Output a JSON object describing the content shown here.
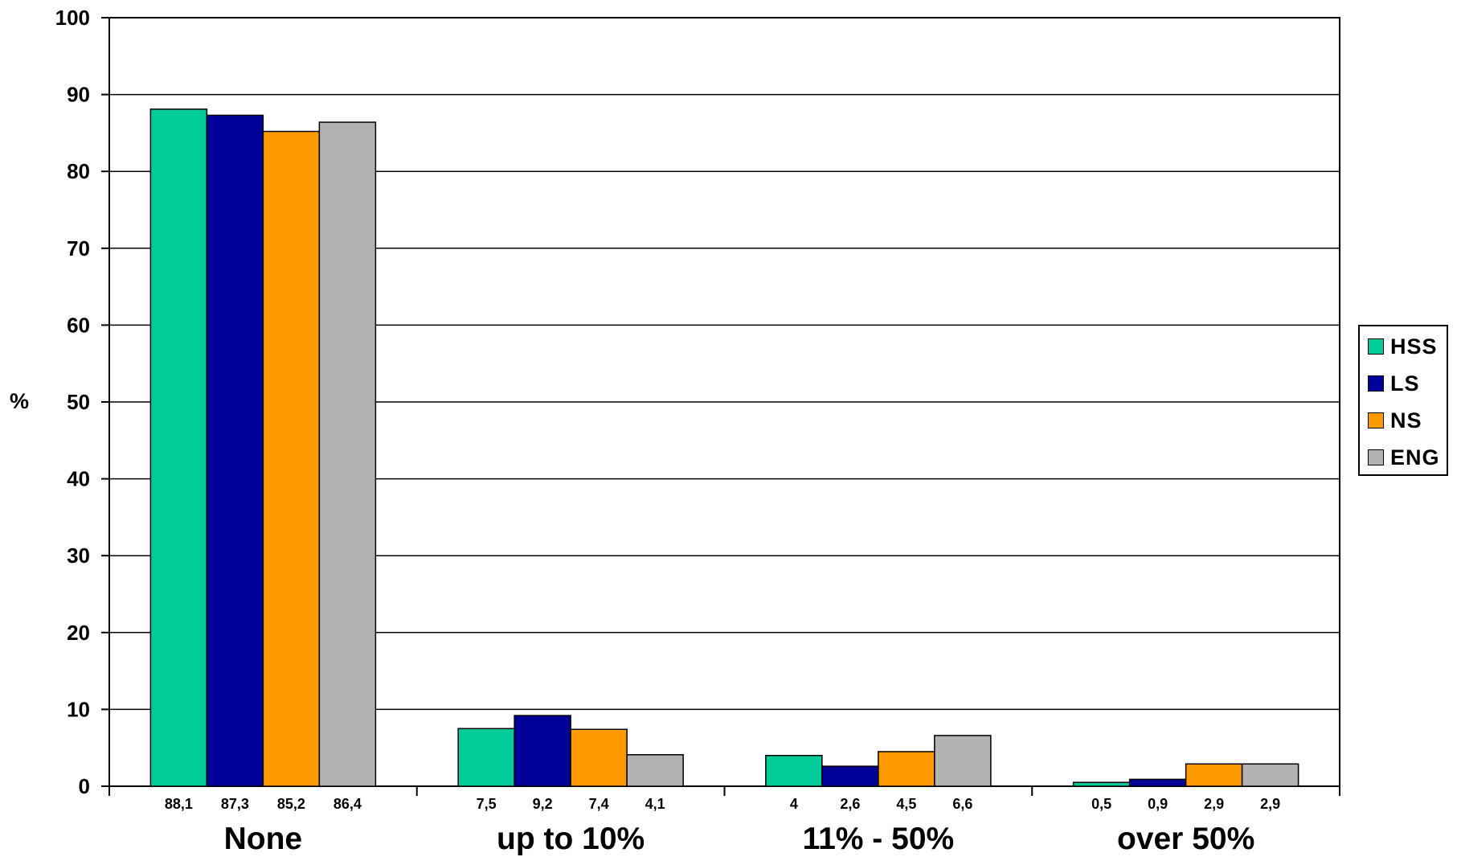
{
  "chart_data": {
    "type": "bar",
    "ylabel": "%",
    "ylim": [
      0,
      100
    ],
    "yticks": [
      "0",
      "10",
      "20",
      "30",
      "40",
      "50",
      "60",
      "70",
      "80",
      "90",
      "100"
    ],
    "categories": [
      "None",
      "up to 10%",
      "11% - 50%",
      "over 50%"
    ],
    "series": [
      {
        "name": "HSS",
        "color": "#00CC99",
        "values": [
          88.1,
          7.5,
          4,
          0.5
        ],
        "labels": [
          "88,1",
          "7,5",
          "4",
          "0,5"
        ]
      },
      {
        "name": "LS",
        "color": "#000099",
        "values": [
          87.3,
          9.2,
          2.6,
          0.9
        ],
        "labels": [
          "87,3",
          "9,2",
          "2,6",
          "0,9"
        ]
      },
      {
        "name": "NS",
        "color": "#FF9900",
        "values": [
          85.2,
          7.4,
          4.5,
          2.9
        ],
        "labels": [
          "85,2",
          "7,4",
          "4,5",
          "2,9"
        ]
      },
      {
        "name": "ENG",
        "color": "#B2B2B2",
        "values": [
          86.4,
          4.1,
          6.6,
          2.9
        ],
        "labels": [
          "86,4",
          "4,1",
          "6,6",
          "2,9"
        ]
      }
    ],
    "grid": true,
    "legend": "right"
  }
}
